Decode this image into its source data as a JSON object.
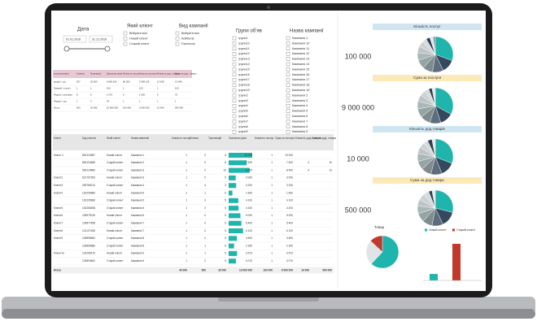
{
  "filters": {
    "date": {
      "title": "Дата",
      "from": "01.01.2018",
      "to": "31.12.2018"
    },
    "client_type": {
      "title": "Який клієнт",
      "options": [
        "Вибрати все",
        "Новий клієнт",
        "Старий клієнт"
      ]
    },
    "campaign_type": {
      "title": "Вид кампанії",
      "options": [
        "Вибрати все",
        "AdWords",
        "Facebook"
      ]
    },
    "ad_groups": {
      "title": "Групи об'яв",
      "options": [
        "групи1",
        "групи10",
        "групи11",
        "групи12",
        "групи13",
        "групи14",
        "групи15",
        "групи16",
        "групи17",
        "групи18",
        "групи19",
        "групи2",
        "групи3",
        "групи4",
        "групи5",
        "групи6",
        "групи7",
        "групи8",
        "групи9"
      ]
    },
    "campaigns": {
      "title": "Назва кампанії",
      "options": [
        "Кампанія 1",
        "Кампанія 10",
        "Кампанія 11",
        "Кампанія 12",
        "Кампанія 13",
        "Кампанія 14",
        "Кампанія 15",
        "Кампанія 16",
        "Кампанія 17",
        "Кампанія 18",
        "Кампанія 19",
        "Кампанія 2",
        "Кампанія 3",
        "Кампанія 4",
        "Кампанія 5",
        "Кампанія 6",
        "Кампанія 7",
        "Кампанія 8",
        "Кампанія 9"
      ]
    }
  },
  "summary_table": {
    "headers": [
      "source/medium",
      "Сеансы",
      "Транзакції",
      "Загальна сума",
      "Кількість послуг",
      "Сума за послуги",
      "Кількість дод. товарів",
      "Сума за дод. товари"
    ],
    "rows": [
      [
        "google / cpc",
        "927",
        "26 000",
        "9 984 624",
        "96 000",
        "9 298 128",
        "13 628",
        "13 496"
      ],
      [
        "Прямой / (none)",
        "1",
        "1",
        "100",
        "1",
        "100",
        "1",
        "100"
      ],
      [
        "Яндекс / реклама",
        "8",
        "8",
        "1 075",
        "6",
        "1 005",
        "6",
        "70"
      ],
      [
        "Яндекс / cpc",
        "1",
        "3",
        "33",
        "1",
        "1",
        "1",
        "1"
      ],
      [
        "Итого",
        "505",
        "30 000",
        "10 000 000",
        "100 000",
        "9 000 000",
        "10 000",
        "500 000"
      ]
    ]
  },
  "main_table": {
    "headers": [
      "Клієнт",
      "Код клієнта",
      "Який клієнт",
      "Назва кампанії",
      "Кількість послуг",
      "Сеанси",
      "Транзакцій",
      "Загальна сума",
      "Кількість послуг",
      "Сума за послуги",
      "Кількість дод. товарів",
      "Сума за дод. товари"
    ],
    "rows": [
      [
        "Клієнт 1",
        "590124587",
        "Новий клієнт",
        "Кампанія 1",
        "1",
        "0",
        "5",
        {
          "value": 10000,
          "label": "10 000"
        },
        "1",
        "10 000",
        null,
        null
      ],
      [
        null,
        "590124588",
        "Старий клієнт",
        "Кампанія 2",
        "1",
        "0",
        "8",
        {
          "value": 7620,
          "label": "7 620"
        },
        "1",
        "7 620",
        "4",
        "10"
      ],
      [
        null,
        "590124589",
        "Старий клієнт",
        "Кампанія 3",
        "1",
        "0",
        "10",
        {
          "value": 8900,
          "label": "8 900"
        },
        "1",
        "8 900",
        "4",
        "10"
      ],
      [
        "Клієнт2",
        "521797309",
        "Новий клієнт",
        "Кампанія 3",
        "1",
        "0",
        "5",
        {
          "value": 3000,
          "label": "3 000"
        },
        "1",
        "3 000",
        null,
        null
      ],
      [
        "Клієнт3",
        "259785214",
        "Старий клієнт",
        "Кампанія 4",
        "1",
        "4",
        "3",
        {
          "value": 3200,
          "label": "3 200"
        },
        "1",
        "3 200",
        null,
        null
      ],
      [
        "Клієнт4",
        "120205985",
        "Новий клієнт",
        "Кампанія 5",
        "1",
        "1",
        "5",
        {
          "value": 1600,
          "label": "1 600"
        },
        "1",
        "1 600",
        null,
        null
      ],
      [
        null,
        "120205986",
        "Старий клієнт",
        "Кампанія 5",
        "1",
        "0",
        "5",
        {
          "value": 4100,
          "label": "4 100"
        },
        "1",
        "4 100",
        null,
        null
      ],
      [
        "Клієнт5",
        "130256458",
        "Старий клієнт",
        "Кампанія 6",
        "1",
        "2",
        "5",
        {
          "value": 4200,
          "label": "4 200"
        },
        "1",
        "4 200",
        null,
        null
      ],
      [
        "Клієнт6",
        "128978745",
        "Новий клієнт",
        "Кампанія 6",
        "1",
        "0",
        "5",
        {
          "value": 5000,
          "label": "5 000"
        },
        "1",
        "5 000",
        null,
        null
      ],
      [
        "Клієнт7",
        "125877458",
        "Старий клієнт",
        "Кампанія 7",
        "1",
        "0",
        "5",
        {
          "value": 5400,
          "label": "5 400"
        },
        "1",
        "5 400",
        null,
        null
      ],
      [
        "Клієнт8",
        "121127458",
        "Новий клієнт",
        "Кампанія 7",
        "1",
        "0",
        "5",
        {
          "value": 6100,
          "label": "6 100"
        },
        "1",
        "6 100",
        null,
        null
      ],
      [
        "Клієнт9",
        "125896584",
        "Старий клієнт",
        "Кампанія 8",
        "1",
        "0",
        "5",
        {
          "value": 3500,
          "label": "3 500"
        },
        "1",
        "3 500",
        null,
        null
      ],
      [
        null,
        "125896585",
        "Старий клієнт",
        "Кампанія 8",
        "1",
        "1",
        "5",
        {
          "value": 2300,
          "label": "2 300"
        },
        "1",
        "2 300",
        null,
        null
      ],
      [
        "Клієнт10",
        "120256479",
        "Новий клієнт",
        "Кампанія 9",
        "1",
        "1",
        "5",
        {
          "value": 3573,
          "label": "3 573"
        },
        "1",
        "3 573",
        null,
        null
      ],
      [
        null,
        "125894652",
        "Старий клієнт",
        "Кампанія 9",
        "1",
        "2",
        "5",
        {
          "value": 3070,
          "label": "3 070"
        },
        "1",
        "3 070",
        null,
        null
      ]
    ],
    "total": [
      "Итого",
      null,
      null,
      null,
      "40 000",
      "500",
      "30 000",
      "10 000 000",
      "100 000",
      "9 000 000",
      "10 000",
      "500 000"
    ]
  },
  "kpis": [
    {
      "title": "Кількість послуг",
      "value": "100 000",
      "slices": [
        30.6,
        12,
        10,
        9,
        8,
        7,
        6,
        5,
        4,
        3.4,
        3,
        2
      ]
    },
    {
      "title": "Сума за послуги",
      "value": "9 000 000",
      "slices": [
        33,
        12,
        10,
        9,
        8,
        7,
        6,
        5,
        4,
        3,
        3
      ]
    },
    {
      "title": "Кількість дод.товарів",
      "value": "10 000",
      "slices": [
        31,
        13,
        10,
        9,
        8,
        7,
        6,
        5,
        4,
        4,
        3
      ]
    },
    {
      "title": "Сума за дод.товари",
      "value": "500 000",
      "slices": [
        29,
        14,
        10,
        9,
        8,
        7,
        6,
        6,
        5,
        3,
        3
      ]
    }
  ],
  "pie_colors": [
    "#1fb5ad",
    "#34495e",
    "#5d6d7e",
    "#7f8c8d",
    "#95a5a6",
    "#aab7b8",
    "#bdc3c7",
    "#ccd1d1",
    "#d5dbdb",
    "#2c3e50",
    "#e5e8e8",
    "#85929e"
  ],
  "product": {
    "title": "Товар",
    "slices": [
      62,
      25,
      13
    ],
    "colors": [
      "#1fb5ad",
      "#e0e4e6",
      "#c0392b"
    ]
  },
  "client_bars": {
    "ylim": [
      0,
      100
    ],
    "series": [
      {
        "name": "Новий клієнт",
        "color": "#1fb5ad",
        "value": 15
      },
      {
        "name": "Старий клієнт",
        "color": "#c0392b",
        "value": 85
      }
    ]
  }
}
